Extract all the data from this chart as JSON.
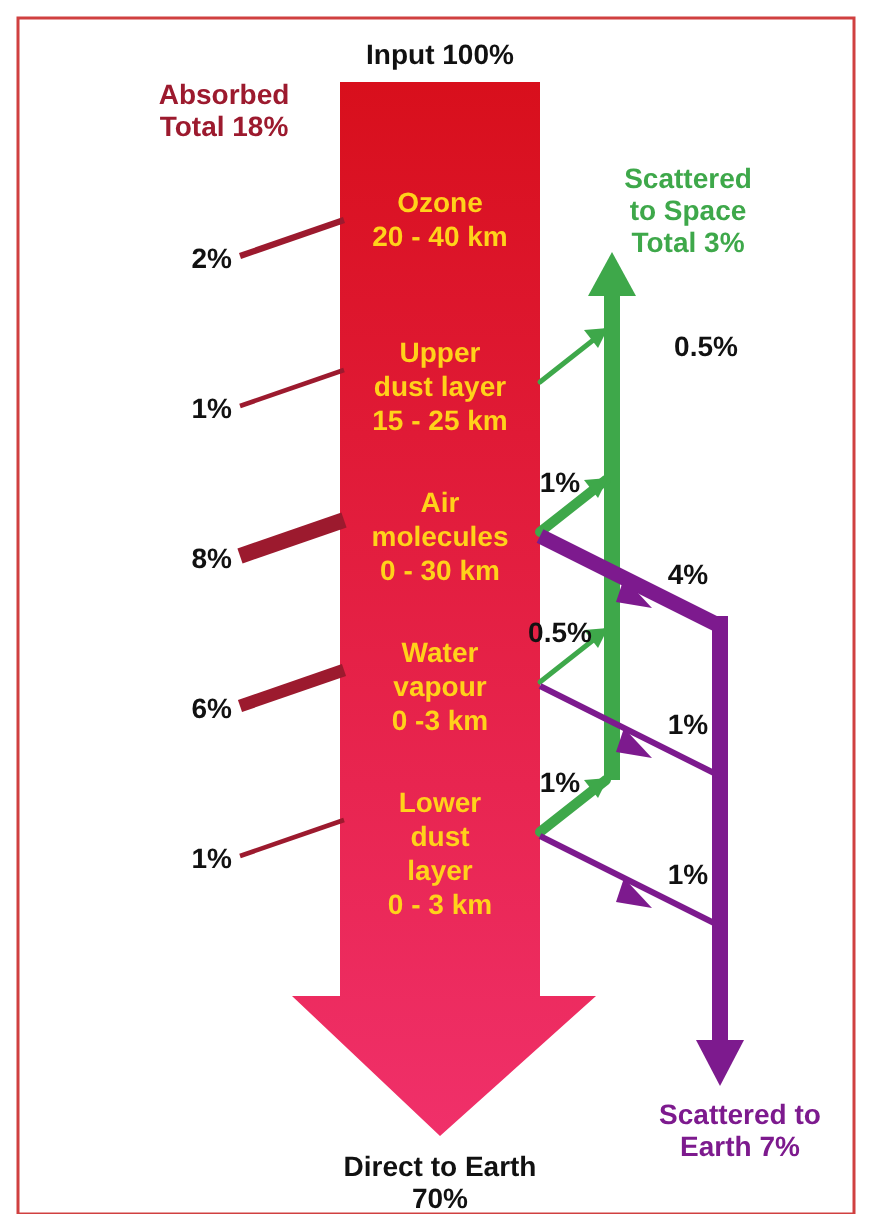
{
  "chart_data": {
    "type": "other",
    "title": "Input 100%",
    "categories": [
      "Ozone\n20 - 40 km",
      "Upper\ndust layer\n15 - 25 km",
      "Air\nmolecules\n0 - 30 km",
      "Water\nvapour\n0 -3 km",
      "Lower\ndust\nlayer\n0 - 3 km"
    ],
    "series": [
      {
        "name": "Absorbed\nTotal 18%",
        "color": "#9c1a2e",
        "values": [
          2,
          1,
          8,
          6,
          1
        ],
        "value_labels": [
          "2%",
          "1%",
          "8%",
          "6%",
          "1%"
        ]
      },
      {
        "name": "Scattered\nto Space\nTotal 3%",
        "color": "#3ea84a",
        "values": [
          null,
          0.5,
          1,
          0.5,
          1
        ],
        "value_labels": [
          null,
          "0.5%",
          "1%",
          "0.5%",
          "1%"
        ]
      },
      {
        "name": "Scattered to\nEarth 7%",
        "color": "#7d1a8e",
        "values": [
          null,
          null,
          4,
          1,
          1
        ],
        "value_labels": [
          null,
          null,
          "4%",
          "1%",
          "1%"
        ]
      }
    ],
    "annotations": [
      "Direct to Earth\n70%"
    ]
  }
}
